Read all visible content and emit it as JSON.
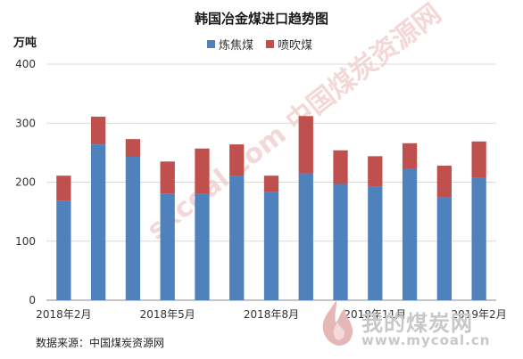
{
  "chart_data": {
    "type": "bar",
    "stacked": true,
    "title": "韩国冶金煤进口趋势图",
    "ylabel": "万吨",
    "ylim": [
      0,
      400
    ],
    "yticks": [
      0,
      100,
      200,
      300,
      400
    ],
    "grid": true,
    "legend_position": "top",
    "categories": [
      "2018年2月",
      "",
      "",
      "2018年5月",
      "",
      "",
      "2018年8月",
      "",
      "",
      "2018年11月",
      "",
      "",
      "2019年2月"
    ],
    "series": [
      {
        "name": "炼焦煤",
        "color": "#4f81bd",
        "values": [
          168,
          264,
          243,
          180,
          180,
          210,
          184,
          215,
          197,
          192,
          222,
          175,
          207
        ]
      },
      {
        "name": "喷吹煤",
        "color": "#c0504d",
        "values": [
          43,
          47,
          30,
          55,
          77,
          54,
          27,
          97,
          57,
          52,
          44,
          53,
          62
        ]
      }
    ]
  },
  "source_note": "数据来源：中国煤炭资源网",
  "watermarks": {
    "diagonal_text": "sxcoal.com 中国煤炭资源网",
    "logo_text": "我的煤炭网",
    "logo_url": "www.mycoal.cn"
  }
}
